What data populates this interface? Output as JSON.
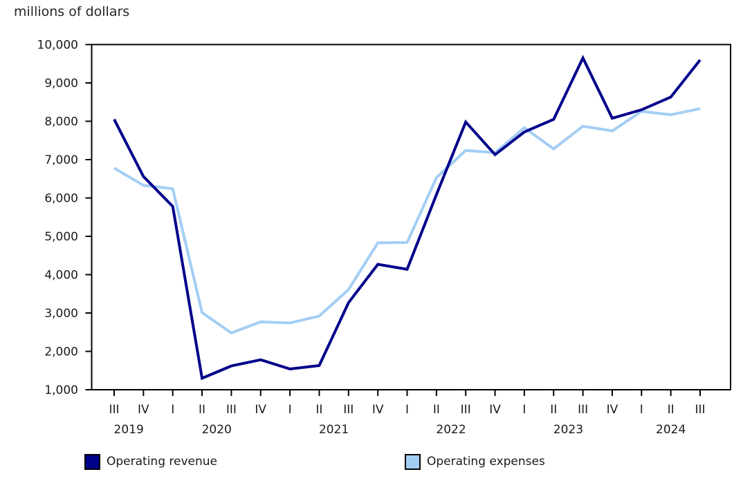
{
  "title": "millions of dollars",
  "chart_data": {
    "type": "line",
    "title": "millions of dollars",
    "xlabel": "",
    "ylabel": "millions of dollars",
    "ylim": [
      1000,
      10000
    ],
    "ytick_step": 1000,
    "grid": false,
    "legend_position": "bottom",
    "categories": [
      "2019 III",
      "2019 IV",
      "2020 I",
      "2020 II",
      "2020 III",
      "2020 IV",
      "2021 I",
      "2021 II",
      "2021 III",
      "2021 IV",
      "2022 I",
      "2022 II",
      "2022 III",
      "2022 IV",
      "2023 I",
      "2023 II",
      "2023 III",
      "2023 IV",
      "2024 I",
      "2024 II",
      "2024 III"
    ],
    "quarter_labels": [
      "III",
      "IV",
      "I",
      "II",
      "III",
      "IV",
      "I",
      "II",
      "III",
      "IV",
      "I",
      "II",
      "III",
      "IV",
      "I",
      "II",
      "III",
      "IV",
      "I",
      "II",
      "III"
    ],
    "year_groups": [
      {
        "label": "2019",
        "count": 2
      },
      {
        "label": "2020",
        "count": 4
      },
      {
        "label": "2021",
        "count": 4
      },
      {
        "label": "2022",
        "count": 4
      },
      {
        "label": "2023",
        "count": 4
      },
      {
        "label": "2024",
        "count": 3
      }
    ],
    "series": [
      {
        "name": "Operating revenue",
        "color": "#00008b",
        "values": [
          8050,
          6560,
          5780,
          1300,
          1620,
          1780,
          1540,
          1630,
          3270,
          4270,
          4140,
          6090,
          7980,
          7130,
          7720,
          8050,
          9650,
          8080,
          8300,
          8630,
          9600
        ]
      },
      {
        "name": "Operating expenses",
        "color": "#a3cef4",
        "values": [
          6780,
          6330,
          6240,
          3010,
          2480,
          2770,
          2740,
          2920,
          3610,
          4830,
          4840,
          6530,
          7240,
          7180,
          7830,
          7280,
          7870,
          7750,
          8260,
          8170,
          8330
        ]
      }
    ]
  },
  "legend": {
    "items": [
      {
        "label": "Operating revenue",
        "color": "#00008b"
      },
      {
        "label": "Operating expenses",
        "color": "#a3cef4"
      }
    ]
  }
}
